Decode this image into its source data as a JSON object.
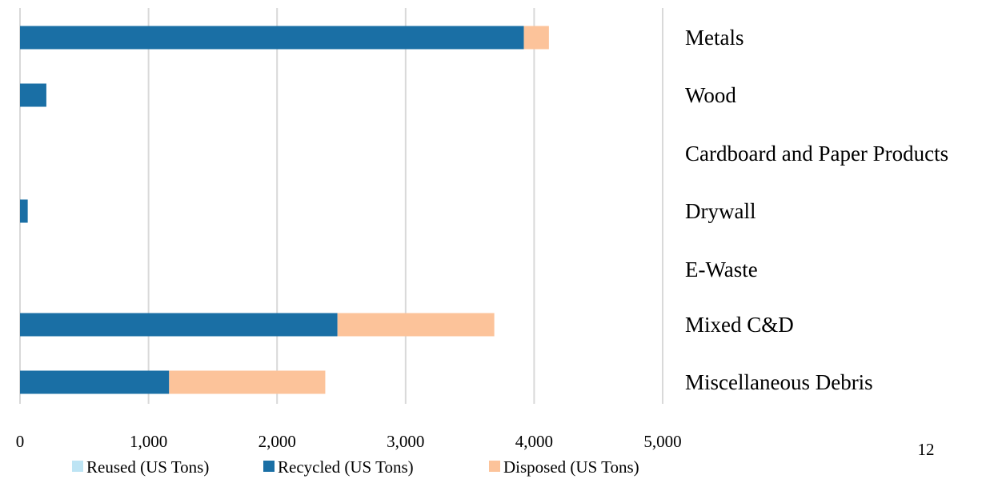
{
  "chart_data": {
    "type": "bar",
    "orientation": "horizontal",
    "stacked": true,
    "categories": [
      "Metals",
      "Wood",
      "Cardboard and Paper Products",
      "Drywall",
      "E-Waste",
      "Mixed C&D",
      "Miscellaneous Debris"
    ],
    "series": [
      {
        "name": "Reused (US Tons)",
        "color": "#bde4f4",
        "values": [
          0,
          0,
          0,
          0,
          0,
          0,
          0
        ]
      },
      {
        "name": "Recycled (US Tons)",
        "color": "#1a6fa5",
        "values": [
          3920,
          205,
          0,
          60,
          0,
          2470,
          1160
        ]
      },
      {
        "name": "Disposed (US Tons)",
        "color": "#fcc39a",
        "values": [
          195,
          0,
          0,
          0,
          0,
          1220,
          1215
        ]
      }
    ],
    "xlim": [
      0,
      5000
    ],
    "xticks": [
      0,
      1000,
      2000,
      3000,
      4000,
      5000
    ],
    "xtick_labels": [
      "0",
      "1,000",
      "2,000",
      "3,000",
      "4,000",
      "5,000"
    ],
    "grid": "vertical",
    "grid_color": "#d9d9d9",
    "category_labels_position": "right",
    "legend_position": "bottom"
  },
  "page_number": "12"
}
